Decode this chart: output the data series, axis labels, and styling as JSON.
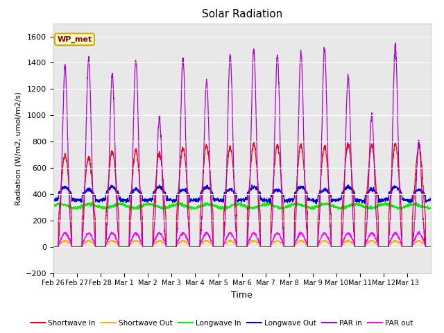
{
  "title": "Solar Radiation",
  "ylabel": "Radiation (W/m2, umol/m2/s)",
  "xlabel": "Time",
  "ylim": [
    -200,
    1700
  ],
  "yticks": [
    -200,
    0,
    200,
    400,
    600,
    800,
    1000,
    1200,
    1400,
    1600
  ],
  "plot_bg": "#e8e8e8",
  "fig_bg": "#ffffff",
  "legend_label": "WP_met",
  "series": {
    "shortwave_in": {
      "color": "#ff0000",
      "label": "Shortwave In"
    },
    "shortwave_out": {
      "color": "#ffaa00",
      "label": "Shortwave Out"
    },
    "longwave_in": {
      "color": "#00ee00",
      "label": "Longwave In"
    },
    "longwave_out": {
      "color": "#0000dd",
      "label": "Longwave Out"
    },
    "par_in": {
      "color": "#aa00cc",
      "label": "PAR in"
    },
    "par_out": {
      "color": "#ff00ff",
      "label": "PAR out"
    }
  },
  "n_days": 16,
  "points_per_day": 144,
  "xtick_labels": [
    "Feb 26",
    "Feb 27",
    "Feb 28",
    "Mar 1",
    "Mar 2",
    "Mar 3",
    "Mar 4",
    "Mar 5",
    "Mar 6",
    "Mar 7",
    "Mar 8",
    "Mar 9",
    "Mar 10",
    "Mar 11",
    "Mar 12",
    "Mar 13"
  ],
  "sw_peaks": [
    700,
    680,
    730,
    730,
    710,
    750,
    770,
    760,
    780,
    770,
    775,
    760,
    780,
    770,
    780,
    760
  ],
  "par_peaks": [
    1370,
    1430,
    1310,
    1420,
    980,
    1430,
    1260,
    1465,
    1490,
    1455,
    1480,
    1510,
    1290,
    1010,
    1530,
    800
  ],
  "lw_in_base": 310,
  "lw_out_base": 355
}
